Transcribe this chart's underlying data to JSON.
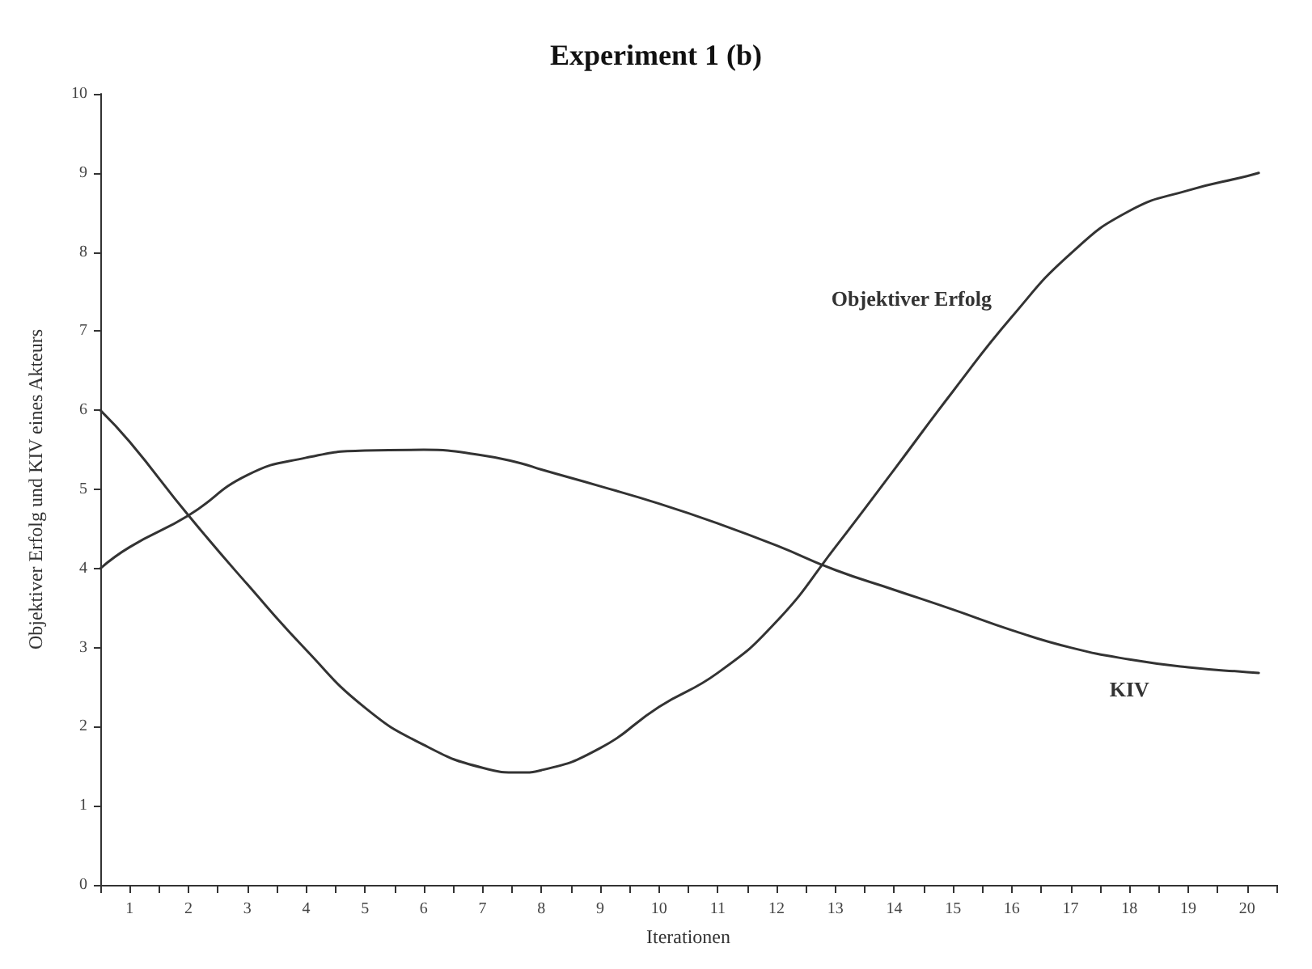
{
  "chart_data": {
    "type": "line",
    "title": "Experiment 1 (b)",
    "xlabel": "Iterationen",
    "ylabel": "Objektiver Erfolg und KIV eines Akteurs",
    "x": [
      0.5,
      1,
      2,
      3,
      4,
      5,
      6,
      7,
      7.65,
      8,
      9,
      10,
      11,
      12,
      13,
      14,
      15,
      16,
      17,
      18,
      19,
      20,
      20.2
    ],
    "series": [
      {
        "name": "Objektiver Erfolg",
        "color": "#333333",
        "values": [
          6,
          5.6,
          4.67,
          3.8,
          2.97,
          2.24,
          1.77,
          1.48,
          1.42,
          1.45,
          1.73,
          2.25,
          2.68,
          3.33,
          4.27,
          5.25,
          6.24,
          7.18,
          7.98,
          8.52,
          8.78,
          8.96,
          9.0
        ]
      },
      {
        "name": "KIV",
        "color": "#333333",
        "values": [
          4,
          4.27,
          4.67,
          5.18,
          5.4,
          5.49,
          5.5,
          5.43,
          5.33,
          5.25,
          5.04,
          4.82,
          4.57,
          4.29,
          3.98,
          3.73,
          3.48,
          3.22,
          3.0,
          2.85,
          2.75,
          2.69,
          2.68
        ]
      }
    ],
    "xlim": [
      0.5,
      20.5
    ],
    "xticks": [
      {
        "value": 0.5,
        "label": null
      },
      1,
      {
        "value": 1.5,
        "label": null
      },
      2,
      {
        "value": 2.5,
        "label": null
      },
      3,
      {
        "value": 3.5,
        "label": null
      },
      4,
      {
        "value": 4.5,
        "label": null
      },
      5,
      {
        "value": 5.5,
        "label": null
      },
      6,
      {
        "value": 6.5,
        "label": null
      },
      7,
      {
        "value": 7.5,
        "label": null
      },
      8,
      {
        "value": 8.5,
        "label": null
      },
      9,
      {
        "value": 9.5,
        "label": null
      },
      10,
      {
        "value": 10.5,
        "label": null
      },
      11,
      {
        "value": 11.5,
        "label": null
      },
      12,
      {
        "value": 12.5,
        "label": null
      },
      13,
      {
        "value": 13.5,
        "label": null
      },
      14,
      {
        "value": 14.5,
        "label": null
      },
      15,
      {
        "value": 15.5,
        "label": null
      },
      16,
      {
        "value": 16.5,
        "label": null
      },
      17,
      {
        "value": 17.5,
        "label": null
      },
      18,
      {
        "value": 18.5,
        "label": null
      },
      19,
      {
        "value": 19.5,
        "label": null
      },
      20,
      {
        "value": 20.5,
        "label": null
      }
    ],
    "ylim": [
      0,
      10
    ],
    "yticks": [
      0,
      1,
      2,
      3,
      4,
      5,
      6,
      7,
      8,
      9,
      10
    ],
    "grid": false,
    "legend": false,
    "marker": "none",
    "line_style": "solid"
  }
}
